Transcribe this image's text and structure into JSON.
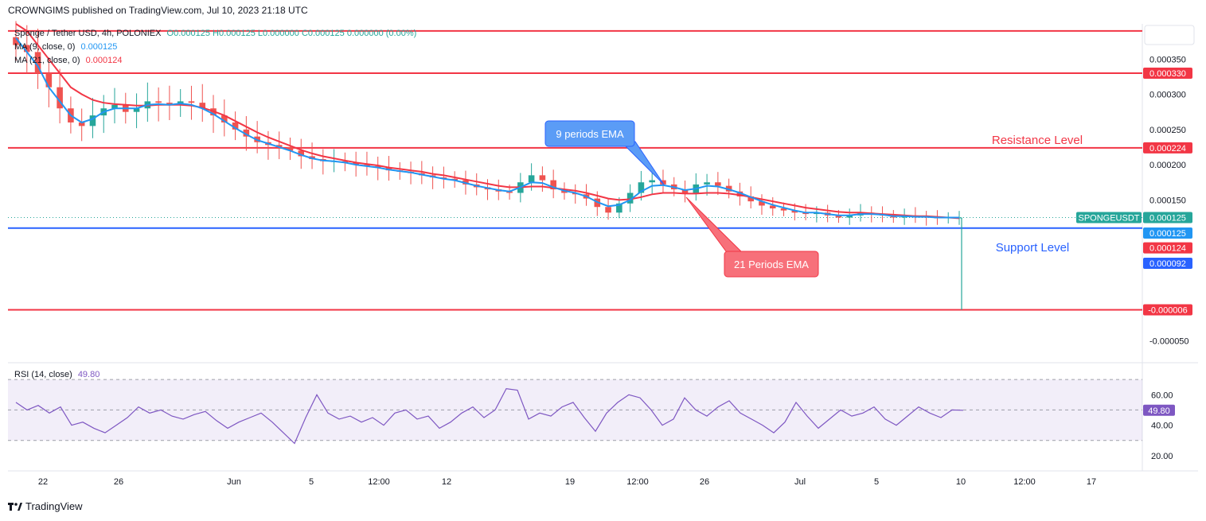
{
  "header": {
    "publisher_line": "CROWNGIMS published on TradingView.com, Jul 10, 2023 21:18 UTC"
  },
  "footer": {
    "brand": "TradingView"
  },
  "legend": {
    "symbol": "Sponge / Tether USD, 4h, POLONIEX",
    "ohlc": "O0.000125  H0.000125  L0.000000  C0.000125  0.000000 (0.00%)",
    "ma9_label": "MA (9, close, 0)",
    "ma9_value": "0.000125",
    "ma21_label": "MA (21, close, 0)",
    "ma21_value": "0.000124",
    "rsi_label": "RSI (14, close)",
    "rsi_value": "49.80"
  },
  "colors": {
    "up": "#26a69a",
    "down": "#ef5350",
    "ma9": "#2196f3",
    "ma21": "#f23645",
    "level_red": "#f23645",
    "level_blue": "#2962ff",
    "rsi": "#7e57c2",
    "callout_blue": "#5b9cf6",
    "callout_red": "#f7707a"
  },
  "chart_data": {
    "type": "candlestick",
    "symbol": "SPONGEUSDT",
    "x_tick_labels": [
      "22",
      "26",
      "Jun",
      "5",
      "12:00",
      "12",
      "19",
      "12:00",
      "26",
      "Jul",
      "5",
      "10",
      "12:00",
      "17"
    ],
    "y_tick_labels": [
      "0.000350",
      "0.000300",
      "0.000250",
      "0.000200",
      "0.000150",
      "-0.000050"
    ],
    "ylim": [
      -8e-05,
      0.0004
    ],
    "price_levels": [
      {
        "value": 0.00039,
        "label": "",
        "color": "red"
      },
      {
        "value": 0.00033,
        "label": "0.000330",
        "color": "red"
      },
      {
        "value": 0.000224,
        "label": "0.000224",
        "color": "red"
      },
      {
        "value": 0.00011,
        "label": "",
        "color": "blue"
      },
      {
        "value": -6e-06,
        "label": "-0.000006",
        "color": "red"
      }
    ],
    "price_tags": [
      {
        "value": 0.000125,
        "label": "0.000125",
        "name": "SPONGEUSDT",
        "color": "#26a69a"
      },
      {
        "value": 0.000103,
        "label": "0.000125",
        "color": "#2196f3"
      },
      {
        "value": 8.2e-05,
        "label": "0.000124",
        "color": "#f23645"
      },
      {
        "value": 6e-05,
        "label": "0.000092",
        "color": "#2962ff"
      }
    ],
    "annotations": [
      {
        "text": "Resistance Level",
        "color": "red"
      },
      {
        "text": "Support Level",
        "color": "blue"
      },
      {
        "text": "9 periods EMA",
        "color": "blue"
      },
      {
        "text": "21 Periods EMA",
        "color": "red"
      }
    ],
    "close_series": [
      0.00037,
      0.00036,
      0.00033,
      0.00031,
      0.00028,
      0.00026,
      0.000255,
      0.00027,
      0.00028,
      0.000285,
      0.000275,
      0.00028,
      0.00029,
      0.000288,
      0.000285,
      0.00029,
      0.000288,
      0.00028,
      0.00027,
      0.00026,
      0.00025,
      0.00024,
      0.000232,
      0.000228,
      0.000225,
      0.00022,
      0.000212,
      0.000208,
      0.000205,
      0.000205,
      0.000203,
      0.0002,
      0.000198,
      0.000196,
      0.000192,
      0.00019,
      0.000188,
      0.000185,
      0.000182,
      0.00018,
      0.000178,
      0.000172,
      0.000168,
      0.000165,
      0.000162,
      0.00016,
      0.000175,
      0.000185,
      0.000178,
      0.000165,
      0.00016,
      0.000158,
      0.000152,
      0.00014,
      0.000132,
      0.000145,
      0.00016,
      0.000175,
      0.000178,
      0.000172,
      0.000165,
      0.00016,
      0.000172,
      0.000175,
      0.00017,
      0.000162,
      0.000155,
      0.000148,
      0.000142,
      0.000138,
      0.000135,
      0.000132,
      0.00013,
      0.000132,
      0.000128,
      0.000125,
      0.000128,
      0.000132,
      0.00013,
      0.000128,
      0.000125,
      0.000128,
      0.000126,
      0.000125,
      0.000124,
      0.000125,
      0.000125
    ],
    "ma9_series": [
      0.00038,
      0.00036,
      0.00034,
      0.00031,
      0.00029,
      0.00027,
      0.00026,
      0.000265,
      0.000275,
      0.00028,
      0.00028,
      0.00028,
      0.000285,
      0.000286,
      0.000285,
      0.000287,
      0.000285,
      0.00028,
      0.000272,
      0.000262,
      0.000252,
      0.000243,
      0.000235,
      0.00023,
      0.000225,
      0.00022,
      0.000214,
      0.000209,
      0.000206,
      0.000205,
      0.000203,
      0.0002,
      0.000198,
      0.000196,
      0.000193,
      0.000191,
      0.000189,
      0.000186,
      0.000183,
      0.00018,
      0.000178,
      0.000174,
      0.00017,
      0.000167,
      0.000164,
      0.000162,
      0.000168,
      0.000175,
      0.000174,
      0.000168,
      0.000163,
      0.00016,
      0.000155,
      0.000147,
      0.000141,
      0.000143,
      0.00015,
      0.000162,
      0.00017,
      0.000171,
      0.000168,
      0.000164,
      0.000166,
      0.00017,
      0.000169,
      0.000165,
      0.00016,
      0.000154,
      0.000148,
      0.000143,
      0.000139,
      0.000135,
      0.000132,
      0.000132,
      0.00013,
      0.000128,
      0.000128,
      0.00013,
      0.00013,
      0.000129,
      0.000127,
      0.000127,
      0.000126,
      0.000126,
      0.000125,
      0.000125,
      0.000125
    ],
    "ma21_series": [
      0.0004,
      0.00039,
      0.00037,
      0.00035,
      0.00033,
      0.00031,
      0.0003,
      0.000292,
      0.000288,
      0.000286,
      0.000285,
      0.000284,
      0.000284,
      0.000285,
      0.000285,
      0.000285,
      0.000284,
      0.000281,
      0.000276,
      0.00027,
      0.000262,
      0.000254,
      0.000246,
      0.000239,
      0.000233,
      0.000227,
      0.000221,
      0.000216,
      0.000212,
      0.000209,
      0.000206,
      0.000203,
      0.000201,
      0.000199,
      0.000196,
      0.000194,
      0.000192,
      0.00019,
      0.000187,
      0.000185,
      0.000182,
      0.000179,
      0.000176,
      0.000173,
      0.00017,
      0.000168,
      0.000168,
      0.000169,
      0.000169,
      0.000167,
      0.000165,
      0.000163,
      0.00016,
      0.000156,
      0.000152,
      0.00015,
      0.000151,
      0.000154,
      0.000158,
      0.00016,
      0.00016,
      0.000159,
      0.000159,
      0.00016,
      0.00016,
      0.000159,
      0.000157,
      0.000154,
      0.000151,
      0.000148,
      0.000145,
      0.000142,
      0.000139,
      0.000137,
      0.000135,
      0.000133,
      0.000132,
      0.000132,
      0.000131,
      0.00013,
      0.000129,
      0.000128,
      0.000127,
      0.000127,
      0.000126,
      0.000125,
      0.000124
    ],
    "spike_low": -6e-06,
    "rsi": {
      "ylim": [
        10,
        80
      ],
      "y_tick_labels": [
        "60.00",
        "40.00",
        "20.00"
      ],
      "bands": [
        70,
        50,
        30
      ],
      "current": 49.8,
      "series": [
        55,
        50,
        53,
        48,
        52,
        40,
        42,
        38,
        35,
        40,
        45,
        52,
        48,
        50,
        46,
        44,
        47,
        49,
        43,
        38,
        42,
        45,
        48,
        42,
        35,
        28,
        45,
        60,
        48,
        44,
        46,
        42,
        45,
        40,
        48,
        50,
        44,
        46,
        38,
        42,
        48,
        52,
        45,
        50,
        64,
        63,
        44,
        48,
        46,
        52,
        55,
        45,
        36,
        48,
        55,
        60,
        58,
        50,
        40,
        44,
        58,
        50,
        46,
        52,
        56,
        48,
        44,
        40,
        35,
        42,
        55,
        46,
        38,
        44,
        50,
        46,
        48,
        52,
        44,
        40,
        46,
        52,
        48,
        45,
        50,
        49.8
      ]
    }
  }
}
